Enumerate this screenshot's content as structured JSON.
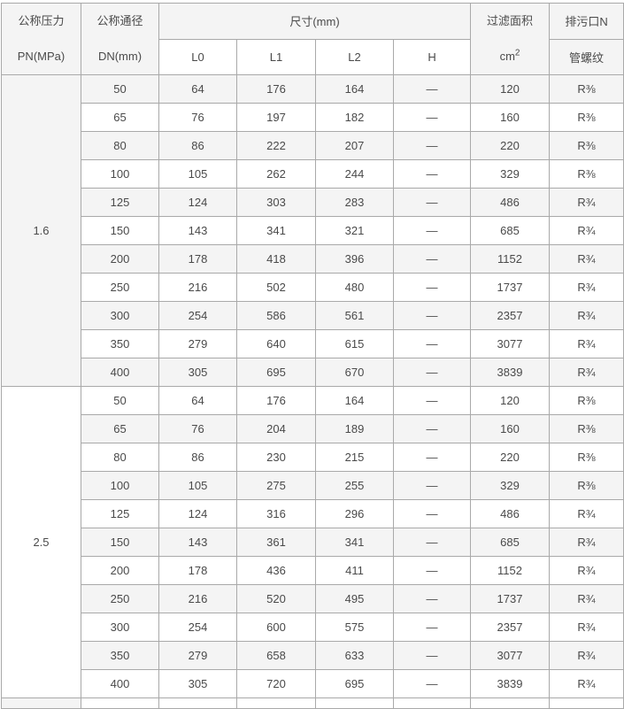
{
  "table": {
    "header": {
      "pressure_line1": "公称压力",
      "pressure_line2": "PN(MPa)",
      "diameter_line1": "公称通径",
      "diameter_line2": "DN(mm)",
      "dimensions_label": "尺寸(mm)",
      "sub_columns": [
        "L0",
        "L1",
        "L2",
        "H"
      ],
      "filter_area_line1": "过滤面积",
      "filter_area_unit_base": "cm",
      "filter_area_unit_sup": "2",
      "drain_line1": "排污口N",
      "drain_line2": "管螺纹"
    },
    "sections": [
      {
        "pn": "1.6",
        "rows": [
          {
            "dn": "50",
            "l0": "64",
            "l1": "176",
            "l2": "164",
            "h": "—",
            "area": "120",
            "thread": "R⅜"
          },
          {
            "dn": "65",
            "l0": "76",
            "l1": "197",
            "l2": "182",
            "h": "—",
            "area": "160",
            "thread": "R⅜"
          },
          {
            "dn": "80",
            "l0": "86",
            "l1": "222",
            "l2": "207",
            "h": "—",
            "area": "220",
            "thread": "R⅜"
          },
          {
            "dn": "100",
            "l0": "105",
            "l1": "262",
            "l2": "244",
            "h": "—",
            "area": "329",
            "thread": "R⅜"
          },
          {
            "dn": "125",
            "l0": "124",
            "l1": "303",
            "l2": "283",
            "h": "—",
            "area": "486",
            "thread": "R¾"
          },
          {
            "dn": "150",
            "l0": "143",
            "l1": "341",
            "l2": "321",
            "h": "—",
            "area": "685",
            "thread": "R¾"
          },
          {
            "dn": "200",
            "l0": "178",
            "l1": "418",
            "l2": "396",
            "h": "—",
            "area": "1152",
            "thread": "R¾"
          },
          {
            "dn": "250",
            "l0": "216",
            "l1": "502",
            "l2": "480",
            "h": "—",
            "area": "1737",
            "thread": "R¾"
          },
          {
            "dn": "300",
            "l0": "254",
            "l1": "586",
            "l2": "561",
            "h": "—",
            "area": "2357",
            "thread": "R¾"
          },
          {
            "dn": "350",
            "l0": "279",
            "l1": "640",
            "l2": "615",
            "h": "—",
            "area": "3077",
            "thread": "R¾"
          },
          {
            "dn": "400",
            "l0": "305",
            "l1": "695",
            "l2": "670",
            "h": "—",
            "area": "3839",
            "thread": "R¾"
          }
        ]
      },
      {
        "pn": "2.5",
        "rows": [
          {
            "dn": "50",
            "l0": "64",
            "l1": "176",
            "l2": "164",
            "h": "—",
            "area": "120",
            "thread": "R⅜"
          },
          {
            "dn": "65",
            "l0": "76",
            "l1": "204",
            "l2": "189",
            "h": "—",
            "area": "160",
            "thread": "R⅜"
          },
          {
            "dn": "80",
            "l0": "86",
            "l1": "230",
            "l2": "215",
            "h": "—",
            "area": "220",
            "thread": "R⅜"
          },
          {
            "dn": "100",
            "l0": "105",
            "l1": "275",
            "l2": "255",
            "h": "—",
            "area": "329",
            "thread": "R⅜"
          },
          {
            "dn": "125",
            "l0": "124",
            "l1": "316",
            "l2": "296",
            "h": "—",
            "area": "486",
            "thread": "R¾"
          },
          {
            "dn": "150",
            "l0": "143",
            "l1": "361",
            "l2": "341",
            "h": "—",
            "area": "685",
            "thread": "R¾"
          },
          {
            "dn": "200",
            "l0": "178",
            "l1": "436",
            "l2": "411",
            "h": "—",
            "area": "1152",
            "thread": "R¾"
          },
          {
            "dn": "250",
            "l0": "216",
            "l1": "520",
            "l2": "495",
            "h": "—",
            "area": "1737",
            "thread": "R¾"
          },
          {
            "dn": "300",
            "l0": "254",
            "l1": "600",
            "l2": "575",
            "h": "—",
            "area": "2357",
            "thread": "R¾"
          },
          {
            "dn": "350",
            "l0": "279",
            "l1": "658",
            "l2": "633",
            "h": "—",
            "area": "3077",
            "thread": "R¾"
          },
          {
            "dn": "400",
            "l0": "305",
            "l1": "720",
            "l2": "695",
            "h": "—",
            "area": "3839",
            "thread": "R¾"
          }
        ]
      }
    ],
    "colors": {
      "stripe_gray": "#f4f4f4",
      "border_gray": "#a9a9a9",
      "text_gray": "#4a4a4a",
      "header_bg": "#f4f4f4"
    }
  }
}
